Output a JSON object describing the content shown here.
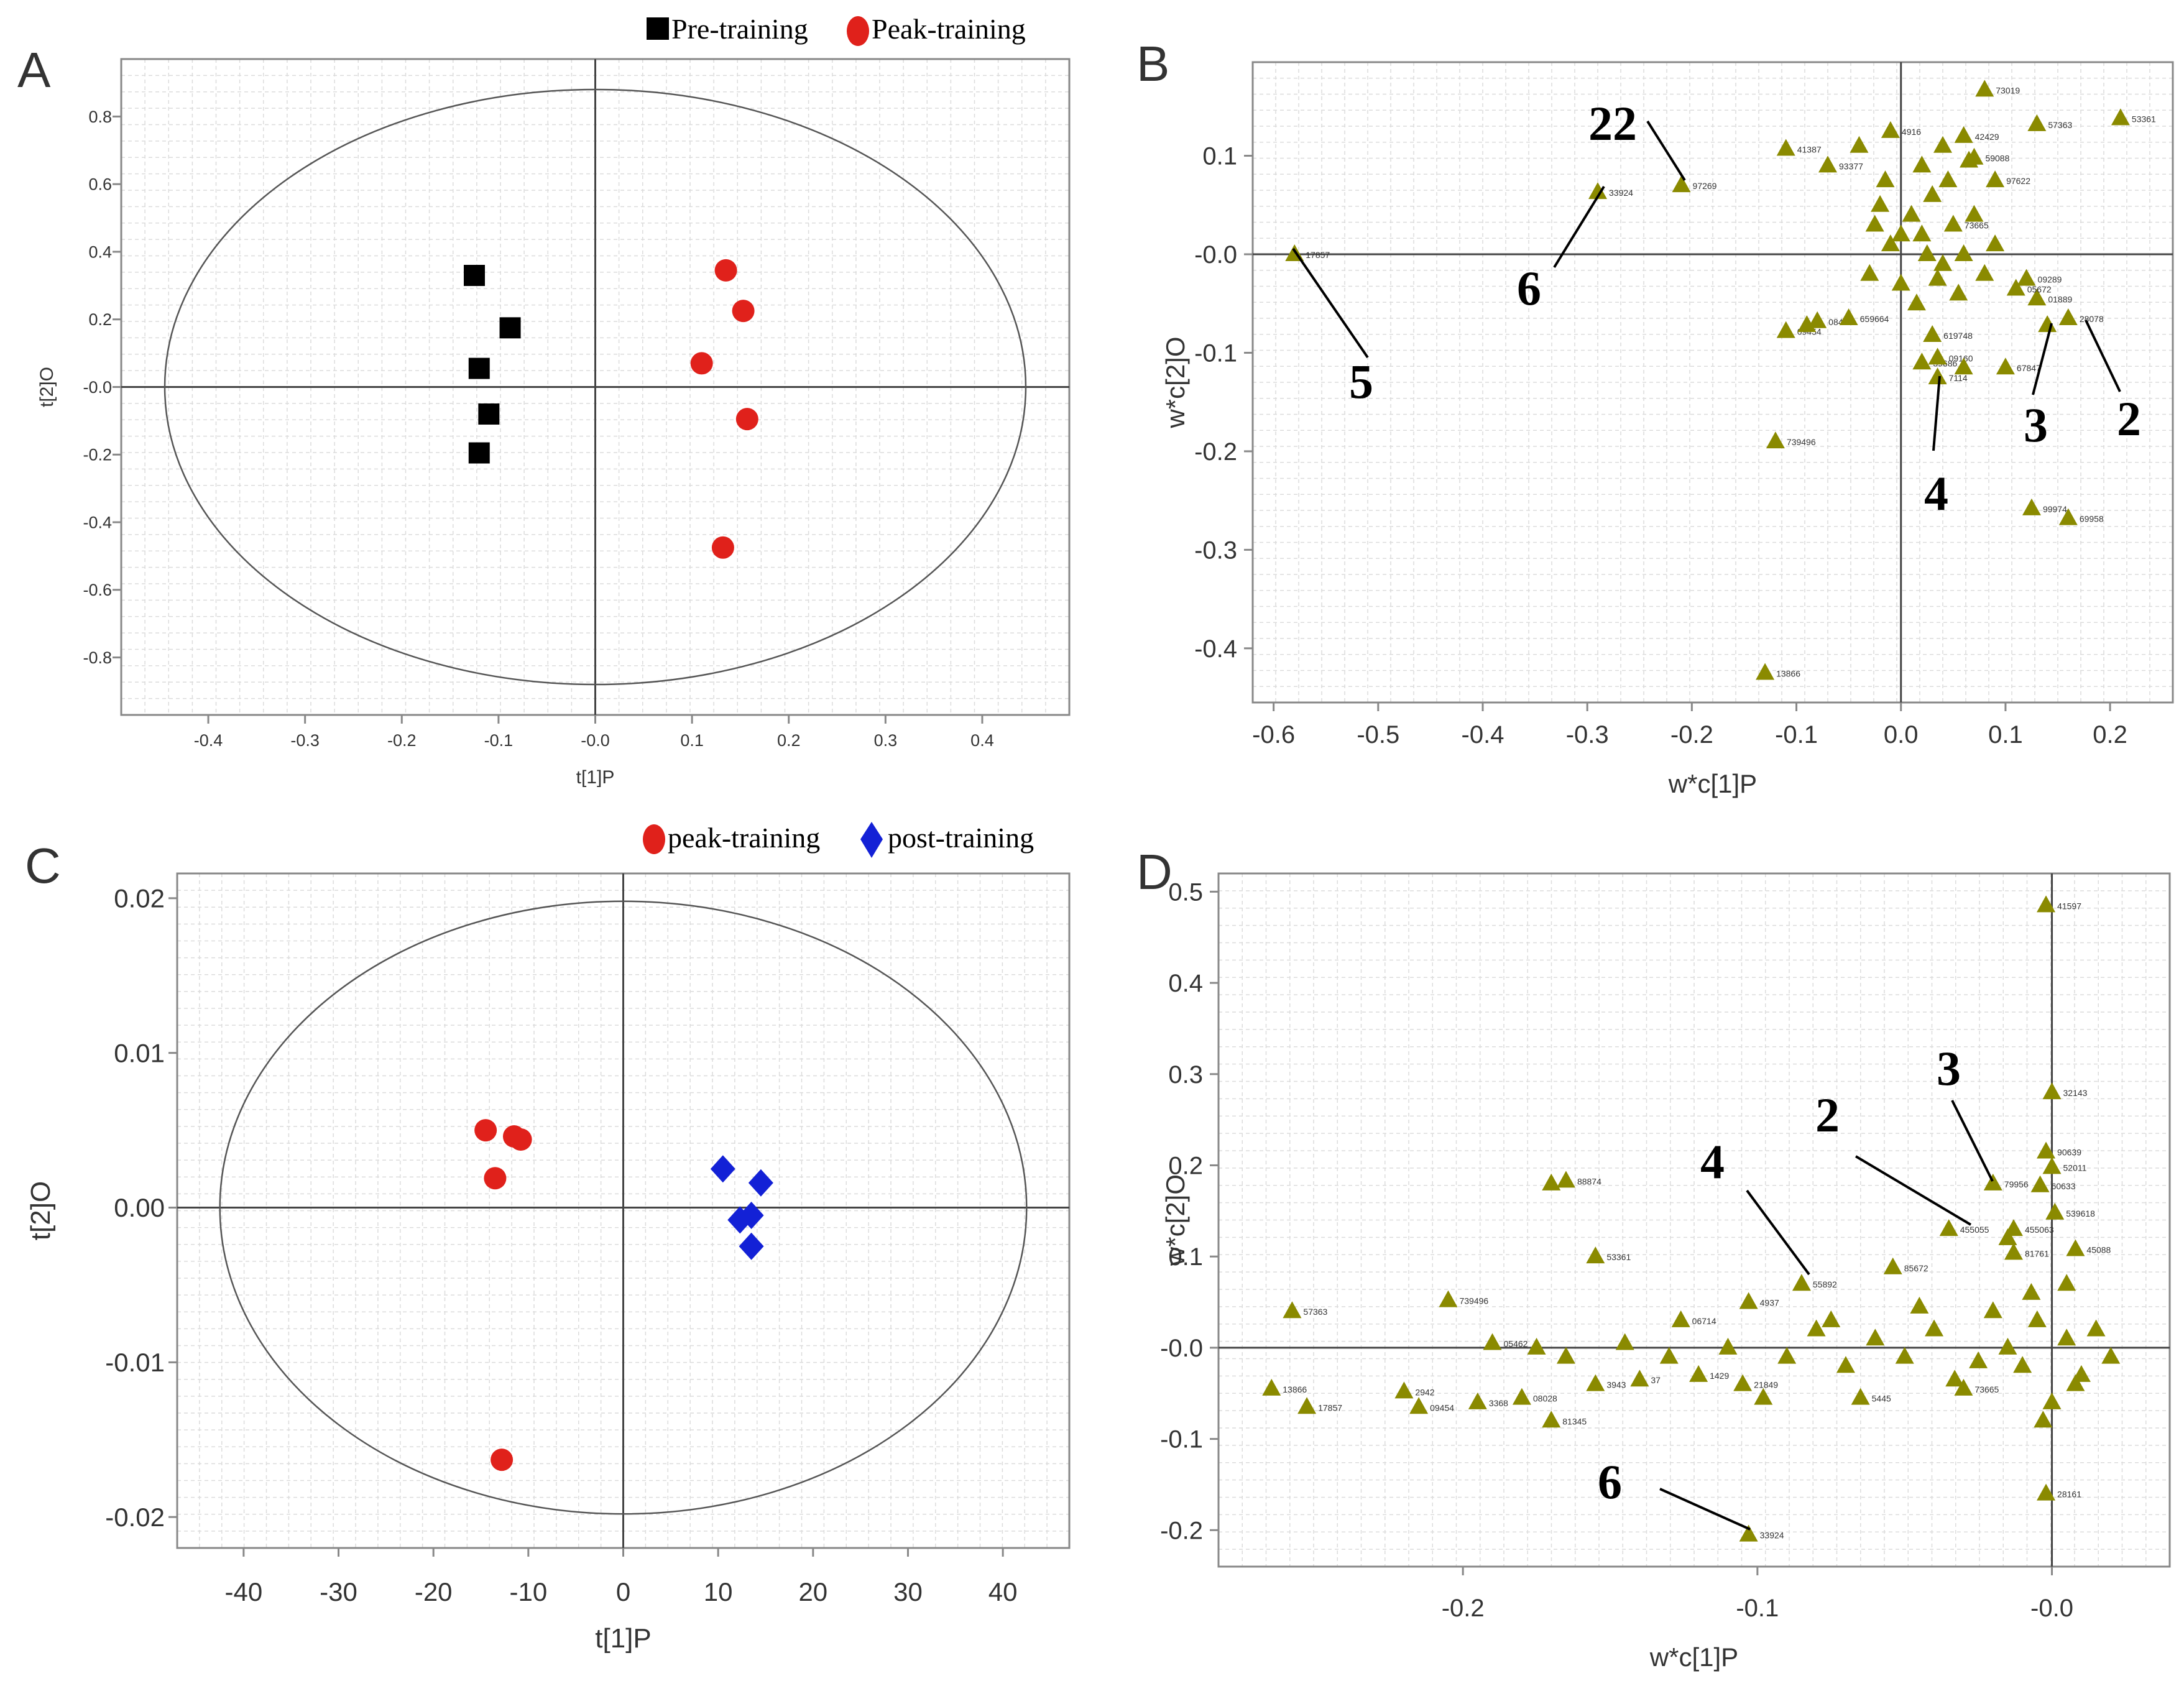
{
  "chart_data": [
    {
      "panel": "A",
      "type": "scatter",
      "xlabel": "t[1]P",
      "ylabel": "t[2]O",
      "xlim": [
        -0.49,
        0.49
      ],
      "ylim": [
        -0.97,
        0.97
      ],
      "xticks": [
        "-0.4",
        "-0.3",
        "-0.2",
        "-0.1",
        "-0.0",
        "0.1",
        "0.2",
        "0.3",
        "0.4"
      ],
      "yticks": [
        "0.8",
        "0.6",
        "0.4",
        "0.2",
        "-0.0",
        "-0.2",
        "-0.4",
        "-0.6",
        "-0.8"
      ],
      "ellipse": {
        "rx": 0.445,
        "ry": 0.88
      },
      "legend": [
        {
          "name": "Pre-training",
          "marker": "square",
          "color": "#000000"
        },
        {
          "name": "Peak-training",
          "marker": "circle",
          "color": "#e0211b"
        }
      ],
      "series": [
        {
          "name": "Pre-training",
          "points": [
            [
              -0.125,
              0.33
            ],
            [
              -0.088,
              0.175
            ],
            [
              -0.12,
              0.055
            ],
            [
              -0.11,
              -0.08
            ],
            [
              -0.12,
              -0.195
            ]
          ]
        },
        {
          "name": "Peak-training",
          "points": [
            [
              0.135,
              0.345
            ],
            [
              0.153,
              0.225
            ],
            [
              0.11,
              0.07
            ],
            [
              0.157,
              -0.095
            ],
            [
              0.132,
              -0.475
            ]
          ]
        }
      ]
    },
    {
      "panel": "B",
      "type": "scatter",
      "xlabel": "w*c[1]P",
      "ylabel": "w*c[2]O",
      "xlim": [
        -0.62,
        0.26
      ],
      "ylim": [
        -0.455,
        0.195
      ],
      "xticks": [
        "-0.6",
        "-0.5",
        "-0.4",
        "-0.3",
        "-0.2",
        "-0.1",
        "0.0",
        "0.1",
        "0.2"
      ],
      "yticks": [
        "0.1",
        "-0.0",
        "-0.1",
        "-0.2",
        "-0.3",
        "-0.4"
      ],
      "marker_color": "#8a8a00",
      "points": [
        {
          "x": -0.58,
          "y": 0.0,
          "label": "17857"
        },
        {
          "x": -0.29,
          "y": 0.063,
          "label": "33924"
        },
        {
          "x": -0.21,
          "y": 0.07,
          "label": "97269"
        },
        {
          "x": -0.11,
          "y": 0.107,
          "label": "41387"
        },
        {
          "x": -0.07,
          "y": 0.09,
          "label": "93377"
        },
        {
          "x": -0.01,
          "y": 0.125,
          "label": "4916"
        },
        {
          "x": 0.08,
          "y": 0.167,
          "label": "73019"
        },
        {
          "x": 0.13,
          "y": 0.132,
          "label": "57363"
        },
        {
          "x": 0.21,
          "y": 0.138,
          "label": "53361"
        },
        {
          "x": 0.06,
          "y": 0.12,
          "label": "42429"
        },
        {
          "x": 0.07,
          "y": 0.098,
          "label": "59088"
        },
        {
          "x": 0.09,
          "y": 0.075,
          "label": "97622"
        },
        {
          "x": -0.11,
          "y": -0.078,
          "label": "09454"
        },
        {
          "x": -0.09,
          "y": -0.072,
          "label": ""
        },
        {
          "x": -0.08,
          "y": -0.068,
          "label": "08449"
        },
        {
          "x": -0.05,
          "y": -0.065,
          "label": "659664"
        },
        {
          "x": 0.03,
          "y": -0.082,
          "label": "619748"
        },
        {
          "x": 0.02,
          "y": -0.11,
          "label": "39686"
        },
        {
          "x": 0.035,
          "y": -0.105,
          "label": "09160"
        },
        {
          "x": 0.06,
          "y": -0.115,
          "label": ""
        },
        {
          "x": 0.1,
          "y": -0.115,
          "label": "67847"
        },
        {
          "x": 0.14,
          "y": -0.072,
          "label": ""
        },
        {
          "x": 0.16,
          "y": -0.065,
          "label": "28078"
        },
        {
          "x": 0.13,
          "y": -0.045,
          "label": "01889"
        },
        {
          "x": 0.12,
          "y": -0.025,
          "label": "09289"
        },
        {
          "x": 0.11,
          "y": -0.035,
          "label": "05672"
        },
        {
          "x": 0.035,
          "y": -0.125,
          "label": "7114"
        },
        {
          "x": -0.12,
          "y": -0.19,
          "label": "739496"
        },
        {
          "x": 0.125,
          "y": -0.258,
          "label": "99974"
        },
        {
          "x": 0.16,
          "y": -0.268,
          "label": "69958"
        },
        {
          "x": -0.13,
          "y": -0.425,
          "label": "13866"
        },
        {
          "x": 0.01,
          "y": 0.04,
          "label": ""
        },
        {
          "x": 0.02,
          "y": 0.02,
          "label": ""
        },
        {
          "x": -0.01,
          "y": 0.01,
          "label": ""
        },
        {
          "x": 0.04,
          "y": -0.01,
          "label": ""
        },
        {
          "x": 0.05,
          "y": 0.03,
          "label": "73665"
        },
        {
          "x": 0.0,
          "y": -0.03,
          "label": ""
        },
        {
          "x": 0.03,
          "y": 0.06,
          "label": ""
        },
        {
          "x": -0.02,
          "y": 0.05,
          "label": ""
        },
        {
          "x": 0.06,
          "y": 0.0,
          "label": ""
        },
        {
          "x": 0.08,
          "y": -0.02,
          "label": ""
        },
        {
          "x": -0.03,
          "y": -0.02,
          "label": ""
        },
        {
          "x": 0.02,
          "y": 0.09,
          "label": ""
        },
        {
          "x": 0.04,
          "y": 0.11,
          "label": ""
        },
        {
          "x": -0.04,
          "y": 0.11,
          "label": ""
        },
        {
          "x": 0.015,
          "y": -0.05,
          "label": ""
        },
        {
          "x": 0.045,
          "y": 0.075,
          "label": ""
        },
        {
          "x": 0.07,
          "y": 0.04,
          "label": ""
        },
        {
          "x": -0.015,
          "y": 0.075,
          "label": ""
        },
        {
          "x": 0.055,
          "y": -0.04,
          "label": ""
        },
        {
          "x": 0.09,
          "y": 0.01,
          "label": ""
        },
        {
          "x": 0.025,
          "y": 0.0,
          "label": ""
        },
        {
          "x": 0.0,
          "y": 0.02,
          "label": ""
        },
        {
          "x": 0.035,
          "y": -0.025,
          "label": ""
        },
        {
          "x": -0.025,
          "y": 0.03,
          "label": ""
        },
        {
          "x": 0.065,
          "y": 0.095,
          "label": ""
        }
      ],
      "annotations": [
        {
          "text": "22"
        },
        {
          "text": "6"
        },
        {
          "text": "5"
        },
        {
          "text": "4"
        },
        {
          "text": "3"
        },
        {
          "text": "2"
        }
      ]
    },
    {
      "panel": "C",
      "type": "scatter",
      "xlabel": "t[1]P",
      "ylabel": "t[2]O",
      "xlim": [
        -47,
        47
      ],
      "ylim": [
        -0.022,
        0.0216
      ],
      "xticks": [
        "-40",
        "-30",
        "-20",
        "-10",
        "0",
        "10",
        "20",
        "30",
        "40"
      ],
      "yticks": [
        "0.02",
        "0.01",
        "0.00",
        "-0.01",
        "-0.02"
      ],
      "ellipse": {
        "rx": 42.5,
        "ry": 0.0198
      },
      "legend": [
        {
          "name": "peak-training",
          "marker": "circle",
          "color": "#e0211b"
        },
        {
          "name": "post-training",
          "marker": "diamond",
          "color": "#1321d6"
        }
      ],
      "series": [
        {
          "name": "peak-training",
          "points": [
            [
              -14.5,
              0.005
            ],
            [
              -11.5,
              0.0046
            ],
            [
              -10.8,
              0.0044
            ],
            [
              -13.5,
              0.0019
            ],
            [
              -12.8,
              -0.0163
            ]
          ]
        },
        {
          "name": "post-training",
          "points": [
            [
              10.5,
              0.0025
            ],
            [
              14.5,
              0.0016
            ],
            [
              13.5,
              -0.0005
            ],
            [
              12.3,
              -0.0008
            ],
            [
              13.5,
              -0.0025
            ]
          ]
        }
      ]
    },
    {
      "panel": "D",
      "type": "scatter",
      "xlabel": "w*c[1]P",
      "ylabel": "w*c[2]O",
      "xlim": [
        -0.283,
        0.04
      ],
      "ylim": [
        -0.24,
        0.52
      ],
      "xticks": [
        "-0.2",
        "-0.1",
        "-0.0"
      ],
      "yticks": [
        "0.5",
        "0.4",
        "0.3",
        "0.2",
        "0.1",
        "-0.0",
        "-0.1",
        "-0.2"
      ],
      "marker_color": "#8a8a00",
      "points": [
        {
          "x": -0.002,
          "y": 0.485,
          "label": "41597"
        },
        {
          "x": 0.0,
          "y": 0.28,
          "label": "32143"
        },
        {
          "x": -0.002,
          "y": 0.215,
          "label": "90639"
        },
        {
          "x": 0.0,
          "y": 0.198,
          "label": "52011"
        },
        {
          "x": -0.004,
          "y": 0.178,
          "label": "60633"
        },
        {
          "x": -0.02,
          "y": 0.18,
          "label": "79956"
        },
        {
          "x": 0.001,
          "y": 0.148,
          "label": "539618"
        },
        {
          "x": -0.013,
          "y": 0.13,
          "label": "455063"
        },
        {
          "x": -0.015,
          "y": 0.12,
          "label": ""
        },
        {
          "x": 0.008,
          "y": 0.108,
          "label": "45088"
        },
        {
          "x": -0.013,
          "y": 0.104,
          "label": "81761"
        },
        {
          "x": -0.035,
          "y": 0.13,
          "label": "455055"
        },
        {
          "x": -0.054,
          "y": 0.088,
          "label": "85672"
        },
        {
          "x": -0.085,
          "y": 0.07,
          "label": "55892"
        },
        {
          "x": -0.165,
          "y": 0.183,
          "label": "88874"
        },
        {
          "x": -0.17,
          "y": 0.18,
          "label": ""
        },
        {
          "x": -0.155,
          "y": 0.1,
          "label": "53361"
        },
        {
          "x": -0.205,
          "y": 0.052,
          "label": "739496"
        },
        {
          "x": -0.258,
          "y": 0.04,
          "label": "57363"
        },
        {
          "x": -0.19,
          "y": 0.005,
          "label": "05462"
        },
        {
          "x": -0.103,
          "y": 0.05,
          "label": "4937"
        },
        {
          "x": -0.126,
          "y": 0.03,
          "label": "06714"
        },
        {
          "x": -0.265,
          "y": -0.045,
          "label": "13866"
        },
        {
          "x": -0.253,
          "y": -0.065,
          "label": "17857"
        },
        {
          "x": -0.22,
          "y": -0.048,
          "label": "2942"
        },
        {
          "x": -0.215,
          "y": -0.065,
          "label": "09454"
        },
        {
          "x": -0.195,
          "y": -0.06,
          "label": "3368"
        },
        {
          "x": -0.18,
          "y": -0.055,
          "label": "08028"
        },
        {
          "x": -0.17,
          "y": -0.08,
          "label": "81345"
        },
        {
          "x": -0.155,
          "y": -0.04,
          "label": "3943"
        },
        {
          "x": -0.14,
          "y": -0.035,
          "label": "37"
        },
        {
          "x": -0.12,
          "y": -0.03,
          "label": "1429"
        },
        {
          "x": -0.105,
          "y": -0.04,
          "label": "21849"
        },
        {
          "x": -0.098,
          "y": -0.055,
          "label": ""
        },
        {
          "x": -0.065,
          "y": -0.055,
          "label": "5445"
        },
        {
          "x": -0.03,
          "y": -0.045,
          "label": "73665"
        },
        {
          "x": -0.103,
          "y": -0.205,
          "label": "33924"
        },
        {
          "x": -0.002,
          "y": -0.16,
          "label": "28161"
        },
        {
          "x": -0.01,
          "y": -0.02,
          "label": ""
        },
        {
          "x": 0.005,
          "y": 0.01,
          "label": ""
        },
        {
          "x": -0.005,
          "y": 0.03,
          "label": ""
        },
        {
          "x": 0.01,
          "y": -0.03,
          "label": ""
        },
        {
          "x": -0.015,
          "y": 0.0,
          "label": ""
        },
        {
          "x": 0.015,
          "y": 0.02,
          "label": ""
        },
        {
          "x": -0.02,
          "y": 0.04,
          "label": ""
        },
        {
          "x": 0.0,
          "y": -0.06,
          "label": ""
        },
        {
          "x": -0.025,
          "y": -0.015,
          "label": ""
        },
        {
          "x": 0.02,
          "y": -0.01,
          "label": ""
        },
        {
          "x": -0.04,
          "y": 0.02,
          "label": ""
        },
        {
          "x": -0.05,
          "y": -0.01,
          "label": ""
        },
        {
          "x": -0.06,
          "y": 0.01,
          "label": ""
        },
        {
          "x": -0.07,
          "y": -0.02,
          "label": ""
        },
        {
          "x": -0.08,
          "y": 0.02,
          "label": ""
        },
        {
          "x": -0.09,
          "y": -0.01,
          "label": ""
        },
        {
          "x": -0.11,
          "y": 0.0,
          "label": ""
        },
        {
          "x": -0.13,
          "y": -0.01,
          "label": ""
        },
        {
          "x": -0.145,
          "y": 0.005,
          "label": ""
        },
        {
          "x": -0.165,
          "y": -0.01,
          "label": ""
        },
        {
          "x": -0.175,
          "y": 0.0,
          "label": ""
        },
        {
          "x": -0.007,
          "y": 0.06,
          "label": ""
        },
        {
          "x": 0.005,
          "y": 0.07,
          "label": ""
        },
        {
          "x": -0.003,
          "y": -0.08,
          "label": ""
        },
        {
          "x": 0.008,
          "y": -0.04,
          "label": ""
        },
        {
          "x": -0.045,
          "y": 0.045,
          "label": ""
        },
        {
          "x": -0.075,
          "y": 0.03,
          "label": ""
        },
        {
          "x": -0.033,
          "y": -0.035,
          "label": ""
        }
      ],
      "annotations": [
        {
          "text": "3"
        },
        {
          "text": "2"
        },
        {
          "text": "4"
        },
        {
          "text": "6"
        }
      ]
    }
  ],
  "panel_letters": {
    "A": "A",
    "B": "B",
    "C": "C",
    "D": "D"
  },
  "legends": {
    "A": {
      "pre": "Pre-training",
      "peak": "Peak-training"
    },
    "C": {
      "peak": "peak-training",
      "post": "post-training"
    }
  },
  "colors": {
    "red": "#e0211b",
    "blue": "#1321d6",
    "black": "#000000",
    "olive": "#8a8a00",
    "grid": "#dcdcdc",
    "axis": "#888888"
  }
}
